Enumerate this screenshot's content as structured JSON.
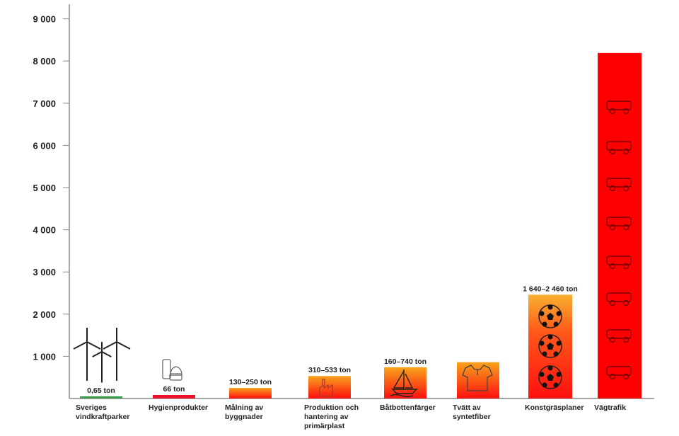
{
  "chart_data": {
    "type": "bar",
    "title": "",
    "xlabel": "",
    "ylabel": "",
    "ylim": [
      0,
      9300
    ],
    "yticks": [
      1000,
      2000,
      3000,
      4000,
      5000,
      6000,
      7000,
      8000,
      9000
    ],
    "ytick_labels": [
      "1 000",
      "2 000",
      "3 000",
      "4 000",
      "5 000",
      "6 000",
      "7 000",
      "8 000",
      "9 000"
    ],
    "grid": false,
    "categories": [
      [
        "Sveriges",
        "vindkraftparker"
      ],
      [
        "Hygienprodukter"
      ],
      [
        "Målning av",
        "byggnader"
      ],
      [
        "Produktion och",
        "hantering av",
        "primärplast"
      ],
      [
        "Båtbottenfärger"
      ],
      [
        "Tvätt av",
        "syntetfiber"
      ],
      [
        "Konstgräsplaner"
      ],
      [
        "Vägtrafik"
      ]
    ],
    "values": [
      0.65,
      66,
      250,
      533,
      740,
      860,
      2460,
      8190
    ],
    "value_labels": [
      "0,65 ton",
      "66 ton",
      "130–250 ton",
      "310–533 ton",
      "160–740 ton",
      "",
      "1 640–2 460 ton",
      ""
    ],
    "fills": [
      "green",
      "red",
      "gradient",
      "gradient",
      "gradient",
      "gradient",
      "gradient",
      "solid-red"
    ],
    "icons": [
      "wind-turbines",
      "hygiene-products",
      "",
      "factory",
      "sailboat",
      "polo-shirt",
      "football",
      "vehicles"
    ],
    "colors": {
      "green": "#3a9a4a",
      "red": "#e8102a",
      "orange": "#f7a21b",
      "bright_red": "#ff0000",
      "axis": "#888888"
    }
  }
}
